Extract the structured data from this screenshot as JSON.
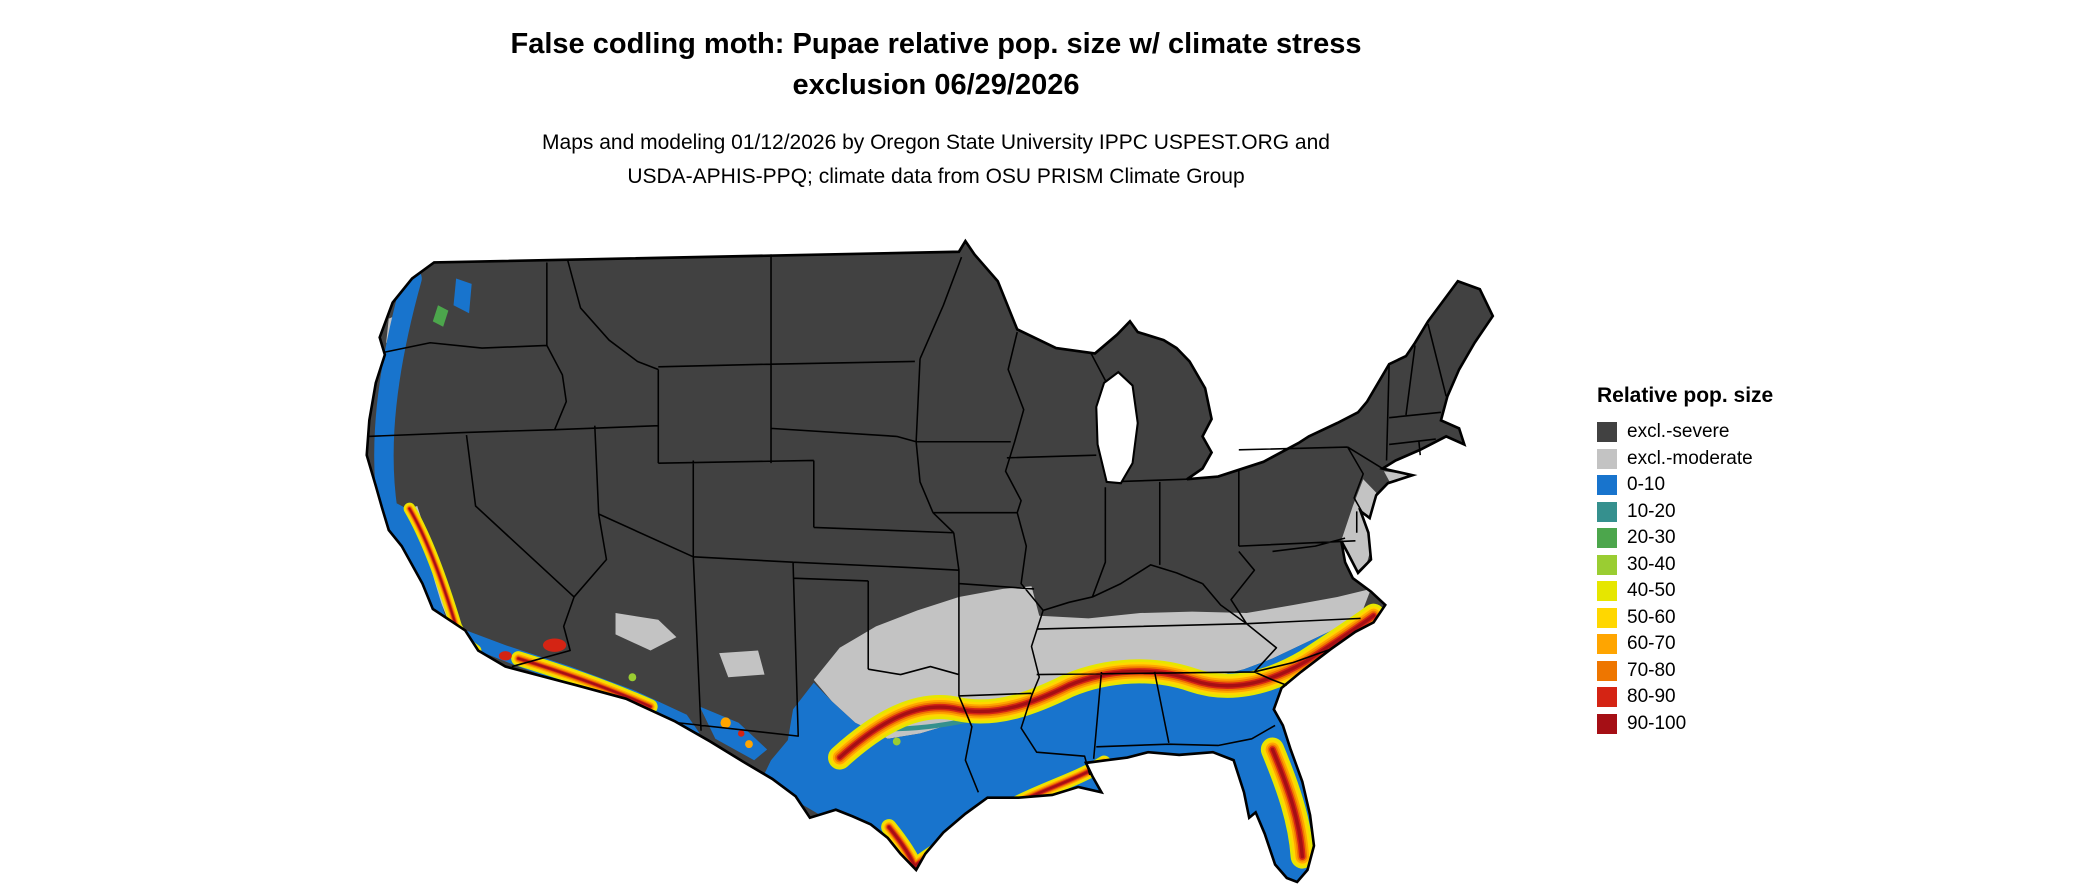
{
  "title": {
    "line1": "False codling moth: Pupae relative pop. size w/ climate stress",
    "line2": "exclusion 06/29/2026"
  },
  "subtitle": {
    "line1": "Maps and modeling 01/12/2026 by Oregon State University IPPC USPEST.ORG and",
    "line2": "USDA-APHIS-PPQ; climate data from OSU PRISM Climate Group"
  },
  "legend": {
    "title": "Relative pop. size",
    "items": [
      {
        "key": "excl-severe",
        "label": "excl.-severe",
        "color": "#414141"
      },
      {
        "key": "excl-moderate",
        "label": "excl.-moderate",
        "color": "#C3C3C3"
      },
      {
        "key": "0-10",
        "label": "0-10",
        "color": "#1874CD"
      },
      {
        "key": "10-20",
        "label": "10-20",
        "color": "#35908E"
      },
      {
        "key": "20-30",
        "label": "20-30",
        "color": "#4CA64C"
      },
      {
        "key": "30-40",
        "label": "30-40",
        "color": "#9ACD32"
      },
      {
        "key": "40-50",
        "label": "40-50",
        "color": "#E6E600"
      },
      {
        "key": "50-60",
        "label": "50-60",
        "color": "#FFD700"
      },
      {
        "key": "60-70",
        "label": "60-70",
        "color": "#FFA500"
      },
      {
        "key": "70-80",
        "label": "70-80",
        "color": "#EE7600"
      },
      {
        "key": "80-90",
        "label": "80-90",
        "color": "#D42414"
      },
      {
        "key": "90-100",
        "label": "90-100",
        "color": "#A50F15"
      }
    ]
  }
}
